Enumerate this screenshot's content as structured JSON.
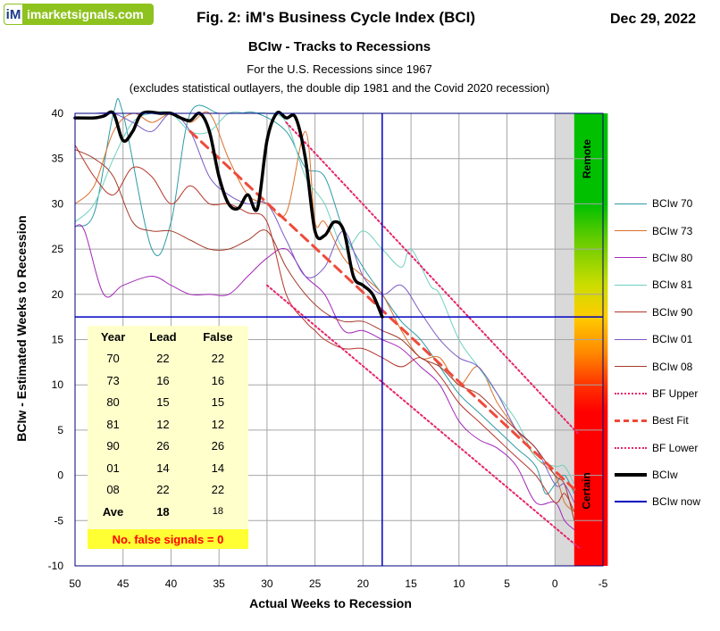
{
  "header": {
    "logo_mark": "iM",
    "logo_text": "imarketsignals.com",
    "title": "Fig. 2:   iM's Business Cycle Index (BCI)",
    "date": "Dec 29, 2022",
    "subtitle": "BCIw - Tracks to Recessions",
    "note_line1": "For the U.S. Recessions since 1967",
    "note_line2": "(excludes statistical outlayers, the  double dip 1981 and the Covid 2020 recession)"
  },
  "colors": {
    "bciw_70": "#2e9aa6",
    "bciw_73": "#d9712b",
    "bciw_80": "#a327b8",
    "bciw_81": "#6fd0c0",
    "bciw_90": "#b5352a",
    "bciw_01": "#7a5bc4",
    "bciw_08": "#a33a2a",
    "bf_lines": "#e8246b",
    "best_fit": "#ef4a3a",
    "bciw": "#000000",
    "bciw_now": "#0000c0",
    "plot_border": "#000080"
  },
  "zones": {
    "remote": "Remote",
    "certain": "Certain"
  },
  "table": {
    "headers": [
      "Year",
      "Lead",
      "False"
    ],
    "rows": [
      [
        "70",
        "22",
        "22"
      ],
      [
        "73",
        "16",
        "16"
      ],
      [
        "80",
        "15",
        "15"
      ],
      [
        "81",
        "12",
        "12"
      ],
      [
        "90",
        "26",
        "26"
      ],
      [
        "01",
        "14",
        "14"
      ],
      [
        "08",
        "22",
        "22"
      ]
    ],
    "average": [
      "Ave",
      "18",
      "18"
    ],
    "false_note": "No. false signals = 0"
  },
  "chart_data": {
    "type": "line",
    "title": "Fig. 2:   iM's Business Cycle Index (BCI)",
    "subtitle": "BCIw - Tracks to Recessions",
    "xlabel": "Actual  Weeks  to  Recession",
    "ylabel": "BCIw - Estimated  Weeks  to  Recession",
    "xlim": [
      50,
      -5
    ],
    "ylim": [
      -10,
      40
    ],
    "x_ticks": [
      50,
      45,
      40,
      35,
      30,
      25,
      20,
      15,
      10,
      5,
      0,
      -5
    ],
    "x_tick_labels": [
      "50",
      "45",
      "40",
      "35",
      "30",
      "25",
      "20",
      "15",
      "10",
      "5",
      "0",
      "-5"
    ],
    "y_ticks": [
      -10,
      -5,
      0,
      5,
      10,
      15,
      20,
      25,
      30,
      35,
      40
    ],
    "y_tick_labels": [
      "-10",
      "-5",
      "0",
      "5",
      "10",
      "15",
      "20",
      "25",
      "30",
      "35",
      "40"
    ],
    "grid": true,
    "legend_position": "right",
    "crosshair": {
      "x": 18,
      "y": 17.5
    },
    "series": [
      {
        "name": "BCIw 70",
        "style": "thin",
        "points": [
          [
            50,
            27.5
          ],
          [
            48,
            29
          ],
          [
            46,
            40
          ],
          [
            45,
            40
          ],
          [
            42,
            25
          ],
          [
            40,
            28
          ],
          [
            38,
            40
          ],
          [
            35,
            40
          ],
          [
            33,
            40
          ],
          [
            31,
            40
          ],
          [
            28,
            38
          ],
          [
            26,
            34
          ],
          [
            24,
            33
          ],
          [
            22,
            27
          ],
          [
            20,
            23
          ],
          [
            18,
            20
          ],
          [
            16,
            17
          ],
          [
            14,
            15
          ],
          [
            12,
            12
          ],
          [
            10,
            9
          ],
          [
            8,
            7
          ],
          [
            6,
            5
          ],
          [
            4,
            3
          ],
          [
            2,
            1
          ],
          [
            1,
            -2
          ],
          [
            0,
            -1
          ],
          [
            -1,
            0
          ],
          [
            -2,
            -2
          ]
        ]
      },
      {
        "name": "BCIw 73",
        "style": "thin",
        "points": [
          [
            50,
            30
          ],
          [
            48,
            32
          ],
          [
            46,
            38
          ],
          [
            44,
            40
          ],
          [
            42,
            39
          ],
          [
            40,
            40
          ],
          [
            38,
            39
          ],
          [
            36,
            40
          ],
          [
            34,
            35
          ],
          [
            32,
            31
          ],
          [
            30,
            30
          ],
          [
            28,
            29
          ],
          [
            26,
            38
          ],
          [
            25,
            28
          ],
          [
            24,
            28
          ],
          [
            22,
            24
          ],
          [
            20,
            22
          ],
          [
            18,
            20
          ],
          [
            16,
            16
          ],
          [
            14,
            13
          ],
          [
            12,
            13
          ],
          [
            10,
            10
          ],
          [
            8,
            12
          ],
          [
            6,
            8
          ],
          [
            4,
            5
          ],
          [
            2,
            2
          ],
          [
            0,
            0
          ],
          [
            -1,
            -3
          ],
          [
            -2,
            -4
          ]
        ]
      },
      {
        "name": "BCIw 80",
        "style": "thin",
        "points": [
          [
            50,
            27.5
          ],
          [
            49,
            27
          ],
          [
            47,
            20
          ],
          [
            45,
            21
          ],
          [
            42,
            22
          ],
          [
            40,
            21
          ],
          [
            38,
            20
          ],
          [
            36,
            20
          ],
          [
            34,
            20
          ],
          [
            32,
            22
          ],
          [
            30,
            24
          ],
          [
            28,
            25
          ],
          [
            26,
            22
          ],
          [
            24,
            20
          ],
          [
            22,
            16
          ],
          [
            20,
            16
          ],
          [
            18,
            15
          ],
          [
            16,
            14
          ],
          [
            14,
            12
          ],
          [
            12,
            10
          ],
          [
            10,
            6
          ],
          [
            8,
            4
          ],
          [
            6,
            3
          ],
          [
            4,
            1
          ],
          [
            2,
            -3
          ],
          [
            0,
            -3
          ],
          [
            -1,
            -5
          ],
          [
            -2,
            -6
          ]
        ]
      },
      {
        "name": "BCIw 81",
        "style": "thin",
        "points": [
          [
            50,
            28
          ],
          [
            48,
            30
          ],
          [
            46,
            35
          ],
          [
            44,
            39
          ],
          [
            42,
            40
          ],
          [
            40,
            40
          ],
          [
            38,
            38
          ],
          [
            36,
            38
          ],
          [
            34,
            40
          ],
          [
            32,
            40
          ],
          [
            30,
            40
          ],
          [
            28,
            39
          ],
          [
            26,
            33
          ],
          [
            24,
            30
          ],
          [
            22,
            25
          ],
          [
            20,
            27
          ],
          [
            18,
            25
          ],
          [
            16,
            23
          ],
          [
            15,
            25
          ],
          [
            13,
            21
          ],
          [
            12,
            20
          ],
          [
            10,
            15
          ],
          [
            8,
            12
          ],
          [
            6,
            9
          ],
          [
            4,
            6
          ],
          [
            2,
            2
          ],
          [
            0,
            1
          ],
          [
            -1,
            1
          ],
          [
            -2,
            -1
          ]
        ]
      },
      {
        "name": "BCIw 90",
        "style": "thin",
        "points": [
          [
            50,
            36.5
          ],
          [
            48,
            33
          ],
          [
            46,
            31
          ],
          [
            44,
            34
          ],
          [
            42,
            33
          ],
          [
            40,
            30
          ],
          [
            38,
            32
          ],
          [
            36,
            30
          ],
          [
            34,
            30
          ],
          [
            32,
            29
          ],
          [
            30,
            28
          ],
          [
            28,
            20
          ],
          [
            26,
            17
          ],
          [
            25,
            16
          ],
          [
            24,
            15
          ],
          [
            22,
            14
          ],
          [
            20,
            14
          ],
          [
            18,
            13
          ],
          [
            16,
            12
          ],
          [
            14,
            13
          ],
          [
            12,
            11
          ],
          [
            10,
            8
          ],
          [
            8,
            6
          ],
          [
            6,
            4
          ],
          [
            4,
            2
          ],
          [
            2,
            0
          ],
          [
            0,
            -3
          ],
          [
            -1,
            -2
          ],
          [
            -2,
            -4
          ]
        ]
      },
      {
        "name": "BCIw 01",
        "style": "thin",
        "points": [
          [
            50,
            40
          ],
          [
            48,
            40
          ],
          [
            46,
            40
          ],
          [
            44,
            39
          ],
          [
            42,
            38
          ],
          [
            40,
            40
          ],
          [
            38,
            38
          ],
          [
            36,
            33
          ],
          [
            34,
            31
          ],
          [
            32,
            30
          ],
          [
            30,
            30
          ],
          [
            28,
            26
          ],
          [
            26,
            22
          ],
          [
            24,
            23
          ],
          [
            22,
            27
          ],
          [
            20,
            22
          ],
          [
            18,
            20
          ],
          [
            16,
            21
          ],
          [
            14,
            18
          ],
          [
            12,
            15
          ],
          [
            10,
            13
          ],
          [
            8,
            12
          ],
          [
            6,
            9
          ],
          [
            4,
            5
          ],
          [
            2,
            3
          ],
          [
            0,
            -1
          ],
          [
            -1,
            -1
          ],
          [
            -2,
            -3
          ]
        ]
      },
      {
        "name": "BCIw 08",
        "style": "thin",
        "points": [
          [
            50,
            36
          ],
          [
            48,
            35
          ],
          [
            46,
            33
          ],
          [
            44,
            28
          ],
          [
            42,
            27
          ],
          [
            40,
            27
          ],
          [
            38,
            26
          ],
          [
            36,
            25
          ],
          [
            34,
            25
          ],
          [
            32,
            26
          ],
          [
            30,
            27
          ],
          [
            28,
            23
          ],
          [
            26,
            20
          ],
          [
            24,
            18
          ],
          [
            22,
            17
          ],
          [
            20,
            17
          ],
          [
            18,
            16
          ],
          [
            16,
            15
          ],
          [
            14,
            13
          ],
          [
            12,
            12
          ],
          [
            10,
            10
          ],
          [
            8,
            9
          ],
          [
            6,
            7
          ],
          [
            4,
            5
          ],
          [
            2,
            3
          ],
          [
            0,
            0
          ],
          [
            -1,
            -1
          ],
          [
            -2,
            -5
          ]
        ]
      },
      {
        "name": "BF Upper",
        "style": "dotted-upper",
        "points": [
          [
            28,
            39
          ],
          [
            -2.5,
            4.5
          ]
        ]
      },
      {
        "name": "Best Fit",
        "style": "dashed",
        "points": [
          [
            38,
            38
          ],
          [
            -2.5,
            -2
          ]
        ]
      },
      {
        "name": "BF Lower",
        "style": "dotted-lower",
        "points": [
          [
            30,
            21
          ],
          [
            -2.5,
            -8
          ]
        ]
      },
      {
        "name": "BCIw",
        "style": "thick",
        "points": [
          [
            50,
            39.5
          ],
          [
            48,
            39.5
          ],
          [
            47,
            39.7
          ],
          [
            46,
            40
          ],
          [
            45,
            37
          ],
          [
            44,
            38
          ],
          [
            43,
            40
          ],
          [
            41,
            40
          ],
          [
            40,
            40
          ],
          [
            39,
            39.5
          ],
          [
            38,
            39.2
          ],
          [
            37,
            40
          ],
          [
            36,
            38
          ],
          [
            35,
            33
          ],
          [
            34,
            30
          ],
          [
            33,
            29.5
          ],
          [
            32,
            31
          ],
          [
            31,
            29.5
          ],
          [
            30,
            37
          ],
          [
            29,
            40
          ],
          [
            28,
            39.5
          ],
          [
            27,
            39.5
          ],
          [
            26,
            35
          ],
          [
            25,
            27
          ],
          [
            24,
            26.5
          ],
          [
            23,
            28
          ],
          [
            22,
            27
          ],
          [
            21,
            22
          ],
          [
            20,
            21
          ],
          [
            19,
            20
          ],
          [
            18,
            17.5
          ]
        ]
      },
      {
        "name": "BCIw now",
        "style": "crosshair",
        "points": []
      }
    ]
  }
}
